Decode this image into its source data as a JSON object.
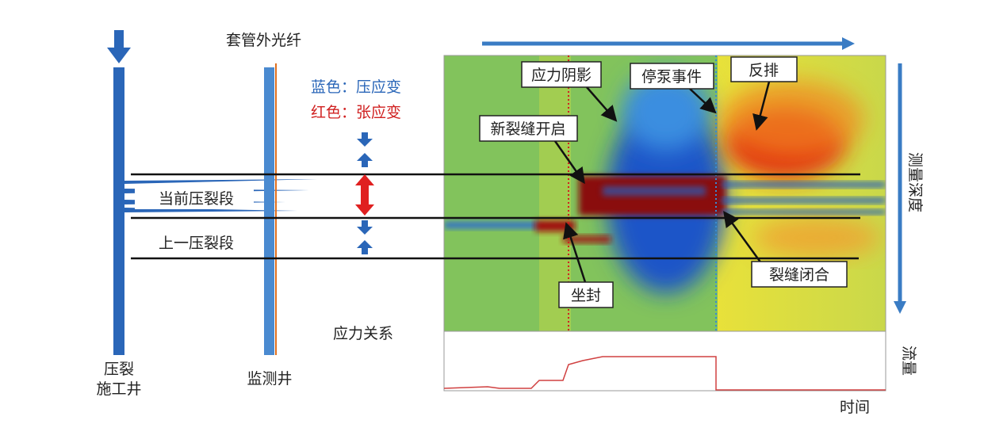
{
  "header": {
    "fiber": "套管外光纤",
    "legend_blue": "蓝色：压应变",
    "legend_red": "红色：张应变"
  },
  "wells": {
    "frac_well": [
      "压裂",
      "施工井"
    ],
    "monitor_well": "监测井"
  },
  "stages": {
    "current": "当前压裂段",
    "previous": "上一压裂段"
  },
  "stress_relation": "应力关系",
  "callouts": {
    "stress_shadow": "应力阴影",
    "pump_stop": "停泵事件",
    "flowback": "反排",
    "new_fracture": "新裂缝开启",
    "fracture_close": "裂缝闭合",
    "packer": "坐封"
  },
  "axes": {
    "depth": "测量深度",
    "flow": "流量",
    "time": "时间"
  }
}
